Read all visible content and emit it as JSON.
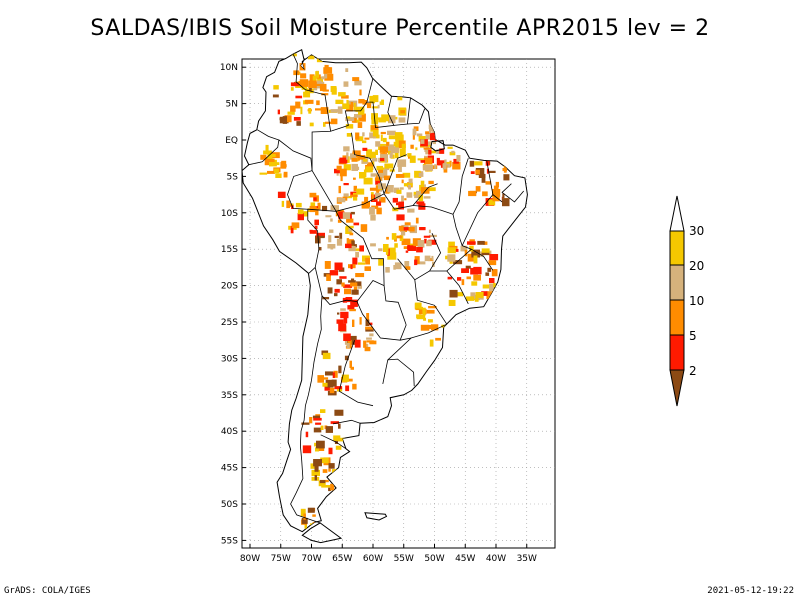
{
  "title": "SALDAS/IBIS Soil Moisture Percentile APR2015 lev = 2",
  "footer": {
    "left": "GrADS: COLA/IGES",
    "right": "2021-05-12-19:22"
  },
  "map": {
    "region": "South America",
    "lat_labels": [
      "10N",
      "5N",
      "EQ",
      "5S",
      "10S",
      "15S",
      "20S",
      "25S",
      "30S",
      "35S",
      "40S",
      "45S",
      "50S",
      "55S"
    ],
    "lon_labels": [
      "80W",
      "75W",
      "70W",
      "65W",
      "60W",
      "55W",
      "50W",
      "45W",
      "40W",
      "35W"
    ],
    "grid": true
  },
  "colorbar": {
    "labels": [
      "30",
      "20",
      "10",
      "5",
      "2"
    ],
    "colors": {
      "above30": "#ffffff",
      "c20_30": "#f5c800",
      "c10_20": "#d6b27c",
      "c5_10": "#ff8c00",
      "c2_5": "#ff1a00",
      "below2": "#8c4a14"
    }
  }
}
